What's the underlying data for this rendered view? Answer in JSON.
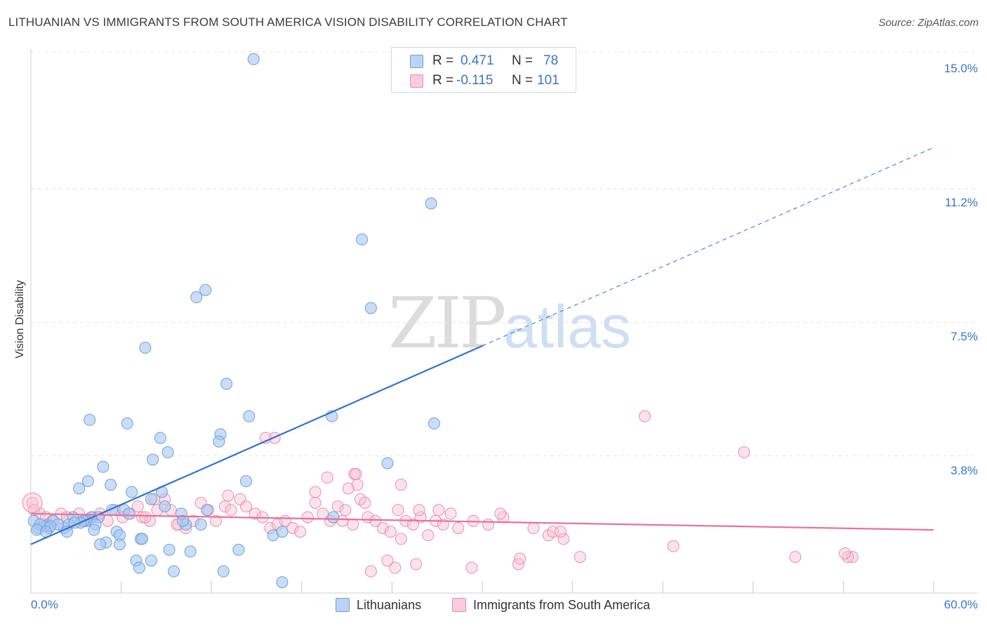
{
  "header": {
    "title": "LITHUANIAN VS IMMIGRANTS FROM SOUTH AMERICA VISION DISABILITY CORRELATION CHART",
    "source": "Source: ZipAtlas.com"
  },
  "watermark": {
    "zip": "ZIP",
    "atlas": "atlas"
  },
  "legend_top": {
    "r_label": "R =",
    "n_label": "N =",
    "rows": [
      {
        "r": "0.471",
        "n": "78"
      },
      {
        "r": "-0.115",
        "n": "101"
      }
    ]
  },
  "legend_bottom": {
    "items": [
      "Lithuanians",
      "Immigrants from South America"
    ]
  },
  "colors": {
    "blue_fill": "#a9c6f0",
    "blue_stroke": "#6c9fe0",
    "blue_line": "#2f72d0",
    "pink_fill": "#f6c0d1",
    "pink_stroke": "#ea8eab",
    "pink_line": "#e8709a",
    "grid": "#e3e3e3",
    "tick_text": "#3a74c9"
  },
  "chart_data": {
    "type": "scatter",
    "title": "LITHUANIAN VS IMMIGRANTS FROM SOUTH AMERICA VISION DISABILITY CORRELATION CHART",
    "xlabel": "",
    "ylabel": "Vision Disability",
    "xlim": [
      0,
      60
    ],
    "ylim": [
      0,
      15.5
    ],
    "x_tick_labels": [
      "0.0%",
      "60.0%"
    ],
    "y_ticks": [
      {
        "value": 3.8,
        "label": "3.8%"
      },
      {
        "value": 7.5,
        "label": "7.5%"
      },
      {
        "value": 11.2,
        "label": "11.2%"
      },
      {
        "value": 15.0,
        "label": "15.0%"
      }
    ],
    "grid": true,
    "legend": "top-center",
    "series": [
      {
        "name": "Lithuanians",
        "R": 0.471,
        "N": 78,
        "trend": {
          "x0": 0,
          "y0": 1.35,
          "x1": 30,
          "y1": 6.85,
          "dash_to_x": 60,
          "dash_to_y": 12.35
        },
        "points": [
          [
            14.8,
            14.8
          ],
          [
            26.6,
            10.8
          ],
          [
            22,
            9.8
          ],
          [
            11.6,
            8.4
          ],
          [
            11.0,
            8.2
          ],
          [
            22.6,
            7.9
          ],
          [
            7.6,
            6.8
          ],
          [
            13,
            5.8
          ],
          [
            14.5,
            4.9
          ],
          [
            20,
            4.9
          ],
          [
            3.9,
            4.8
          ],
          [
            6.4,
            4.7
          ],
          [
            26.8,
            4.7
          ],
          [
            12.6,
            4.4
          ],
          [
            8.6,
            4.3
          ],
          [
            12.5,
            4.2
          ],
          [
            9.1,
            3.9
          ],
          [
            8.1,
            3.7
          ],
          [
            23.7,
            3.6
          ],
          [
            4.8,
            3.5
          ],
          [
            3.8,
            3.1
          ],
          [
            14.3,
            3.1
          ],
          [
            5.3,
            3.0
          ],
          [
            3.2,
            2.9
          ],
          [
            6.7,
            2.8
          ],
          [
            8.7,
            2.8
          ],
          [
            8.0,
            2.6
          ],
          [
            8.9,
            2.4
          ],
          [
            6.2,
            2.3
          ],
          [
            5.4,
            2.3
          ],
          [
            6.5,
            2.2
          ],
          [
            10.0,
            2.2
          ],
          [
            11.7,
            2.3
          ],
          [
            4.5,
            2.1
          ],
          [
            4.0,
            2.1
          ],
          [
            2.8,
            2.1
          ],
          [
            3.7,
            2.0
          ],
          [
            20.1,
            2.1
          ],
          [
            0.2,
            2.0
          ],
          [
            0.5,
            1.8
          ],
          [
            1.1,
            1.9
          ],
          [
            1.5,
            2.0
          ],
          [
            2.2,
            1.8
          ],
          [
            3.5,
            2.0
          ],
          [
            1.8,
            1.9
          ],
          [
            1.2,
            1.8
          ],
          [
            0.9,
            1.85
          ],
          [
            2.5,
            1.9
          ],
          [
            3.3,
            1.95
          ],
          [
            10.3,
            1.9
          ],
          [
            11.3,
            1.9
          ],
          [
            10.1,
            2.0
          ],
          [
            4.3,
            1.9
          ],
          [
            2.9,
            1.95
          ],
          [
            0.6,
            1.9
          ],
          [
            1.3,
            1.85
          ],
          [
            0.4,
            1.75
          ],
          [
            1.0,
            1.7
          ],
          [
            2.4,
            1.7
          ],
          [
            4.2,
            1.75
          ],
          [
            5.7,
            1.7
          ],
          [
            5.9,
            1.6
          ],
          [
            7.3,
            1.5
          ],
          [
            7.4,
            1.5
          ],
          [
            16.1,
            1.6
          ],
          [
            16.7,
            1.7
          ],
          [
            5.0,
            1.4
          ],
          [
            4.6,
            1.35
          ],
          [
            5.9,
            1.35
          ],
          [
            9.2,
            1.2
          ],
          [
            10.6,
            1.15
          ],
          [
            13.8,
            1.2
          ],
          [
            7.0,
            0.9
          ],
          [
            8.0,
            0.9
          ],
          [
            7.2,
            0.7
          ],
          [
            12.8,
            0.6
          ],
          [
            9.5,
            0.6
          ],
          [
            16.7,
            0.3
          ]
        ]
      },
      {
        "name": "Immigrants from South America",
        "R": -0.115,
        "N": 101,
        "trend": {
          "x0": 0,
          "y0": 2.2,
          "x1": 60,
          "y1": 1.75
        },
        "points": [
          [
            0.1,
            2.5
          ],
          [
            0.2,
            2.3
          ],
          [
            0.6,
            2.2
          ],
          [
            1.0,
            2.1
          ],
          [
            1.4,
            2.0
          ],
          [
            2.0,
            2.2
          ],
          [
            2.4,
            2.1
          ],
          [
            3.2,
            2.2
          ],
          [
            3.6,
            2.0
          ],
          [
            4.1,
            2.1
          ],
          [
            4.6,
            2.2
          ],
          [
            5.1,
            2.0
          ],
          [
            5.6,
            2.3
          ],
          [
            6.1,
            2.1
          ],
          [
            6.6,
            2.2
          ],
          [
            7.1,
            2.4
          ],
          [
            7.4,
            2.1
          ],
          [
            7.9,
            2.0
          ],
          [
            8.4,
            2.3
          ],
          [
            8.9,
            2.6
          ],
          [
            9.3,
            2.3
          ],
          [
            9.8,
            1.9
          ],
          [
            10.3,
            1.8
          ],
          [
            10.8,
            2.0
          ],
          [
            11.3,
            2.5
          ],
          [
            11.8,
            2.3
          ],
          [
            12.3,
            2.0
          ],
          [
            12.9,
            2.4
          ],
          [
            13.3,
            2.3
          ],
          [
            13.9,
            2.6
          ],
          [
            14.3,
            2.4
          ],
          [
            14.9,
            2.2
          ],
          [
            15.4,
            2.1
          ],
          [
            15.9,
            1.8
          ],
          [
            16.4,
            1.9
          ],
          [
            16.9,
            2.0
          ],
          [
            17.4,
            1.8
          ],
          [
            17.9,
            1.7
          ],
          [
            18.4,
            2.1
          ],
          [
            18.9,
            2.5
          ],
          [
            19.4,
            2.2
          ],
          [
            19.9,
            2.0
          ],
          [
            20.4,
            2.4
          ],
          [
            20.9,
            2.3
          ],
          [
            21.4,
            1.9
          ],
          [
            21.9,
            2.6
          ],
          [
            22.4,
            2.1
          ],
          [
            22.9,
            2.0
          ],
          [
            23.4,
            1.8
          ],
          [
            23.9,
            1.7
          ],
          [
            24.4,
            2.3
          ],
          [
            24.9,
            2.0
          ],
          [
            25.4,
            1.9
          ],
          [
            25.9,
            2.1
          ],
          [
            26.4,
            1.6
          ],
          [
            26.9,
            2.0
          ],
          [
            27.4,
            1.9
          ],
          [
            27.9,
            2.2
          ],
          [
            28.4,
            1.8
          ],
          [
            29.4,
            2.0
          ],
          [
            30.4,
            1.9
          ],
          [
            31.4,
            2.1
          ],
          [
            32.4,
            0.8
          ],
          [
            33.4,
            1.8
          ],
          [
            34.4,
            1.6
          ],
          [
            35.4,
            1.5
          ],
          [
            16.2,
            4.3
          ],
          [
            15.6,
            4.3
          ],
          [
            19.7,
            3.2
          ],
          [
            21.5,
            3.3
          ],
          [
            21.7,
            3.0
          ],
          [
            21.1,
            2.9
          ],
          [
            24.6,
            3.0
          ],
          [
            25.8,
            2.3
          ],
          [
            27.1,
            2.3
          ],
          [
            18.9,
            2.8
          ],
          [
            22.2,
            2.5
          ],
          [
            20.7,
            2.0
          ],
          [
            13.1,
            2.7
          ],
          [
            24.6,
            1.5
          ],
          [
            25.6,
            0.8
          ],
          [
            24.2,
            0.7
          ],
          [
            22.6,
            0.6
          ],
          [
            23.7,
            0.9
          ],
          [
            29.3,
            0.7
          ],
          [
            32.5,
            0.95
          ],
          [
            36.5,
            1.0
          ],
          [
            42.7,
            1.3
          ],
          [
            50.8,
            1.0
          ],
          [
            54.6,
            1.0
          ],
          [
            54.3,
            1.0
          ],
          [
            54.1,
            1.1
          ],
          [
            40.8,
            4.9
          ],
          [
            47.4,
            3.9
          ],
          [
            21.6,
            3.3
          ],
          [
            31.2,
            2.2
          ],
          [
            34.7,
            1.7
          ],
          [
            35.2,
            1.7
          ],
          [
            8.2,
            2.6
          ],
          [
            9.7,
            1.9
          ],
          [
            7.6,
            2.1
          ]
        ]
      }
    ]
  }
}
